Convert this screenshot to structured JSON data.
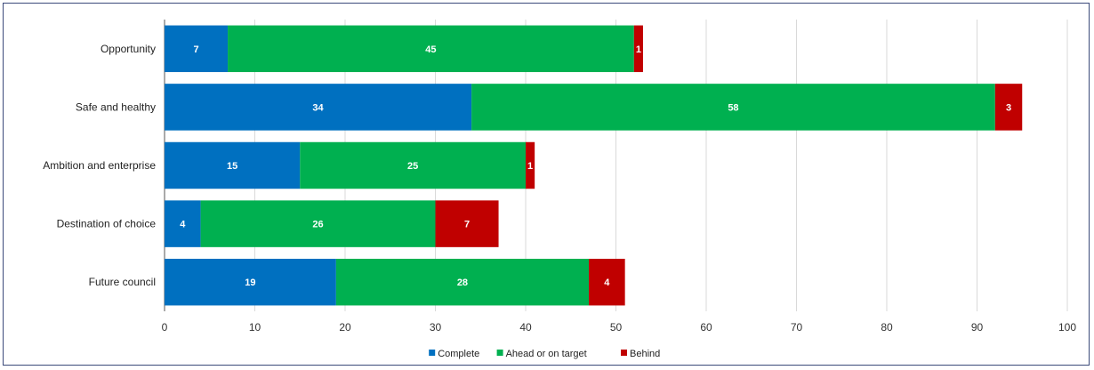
{
  "chart_data": {
    "type": "bar",
    "orientation": "horizontal",
    "stacked": true,
    "categories": [
      "Opportunity",
      "Safe and healthy",
      "Ambition and enterprise",
      "Destination of choice",
      "Future council"
    ],
    "series": [
      {
        "name": "Complete",
        "color": "#0070c0",
        "values": [
          7,
          34,
          15,
          4,
          19
        ]
      },
      {
        "name": "Ahead or on target",
        "color": "#00b050",
        "values": [
          45,
          58,
          25,
          26,
          28
        ]
      },
      {
        "name": "Behind",
        "color": "#c00000",
        "values": [
          1,
          3,
          1,
          7,
          4
        ]
      }
    ],
    "xlim": [
      0,
      100
    ],
    "xticks": [
      0,
      10,
      20,
      30,
      40,
      50,
      60,
      70,
      80,
      90,
      100
    ],
    "grid": true,
    "legend": "bottom",
    "title": "",
    "xlabel": "",
    "ylabel": ""
  }
}
